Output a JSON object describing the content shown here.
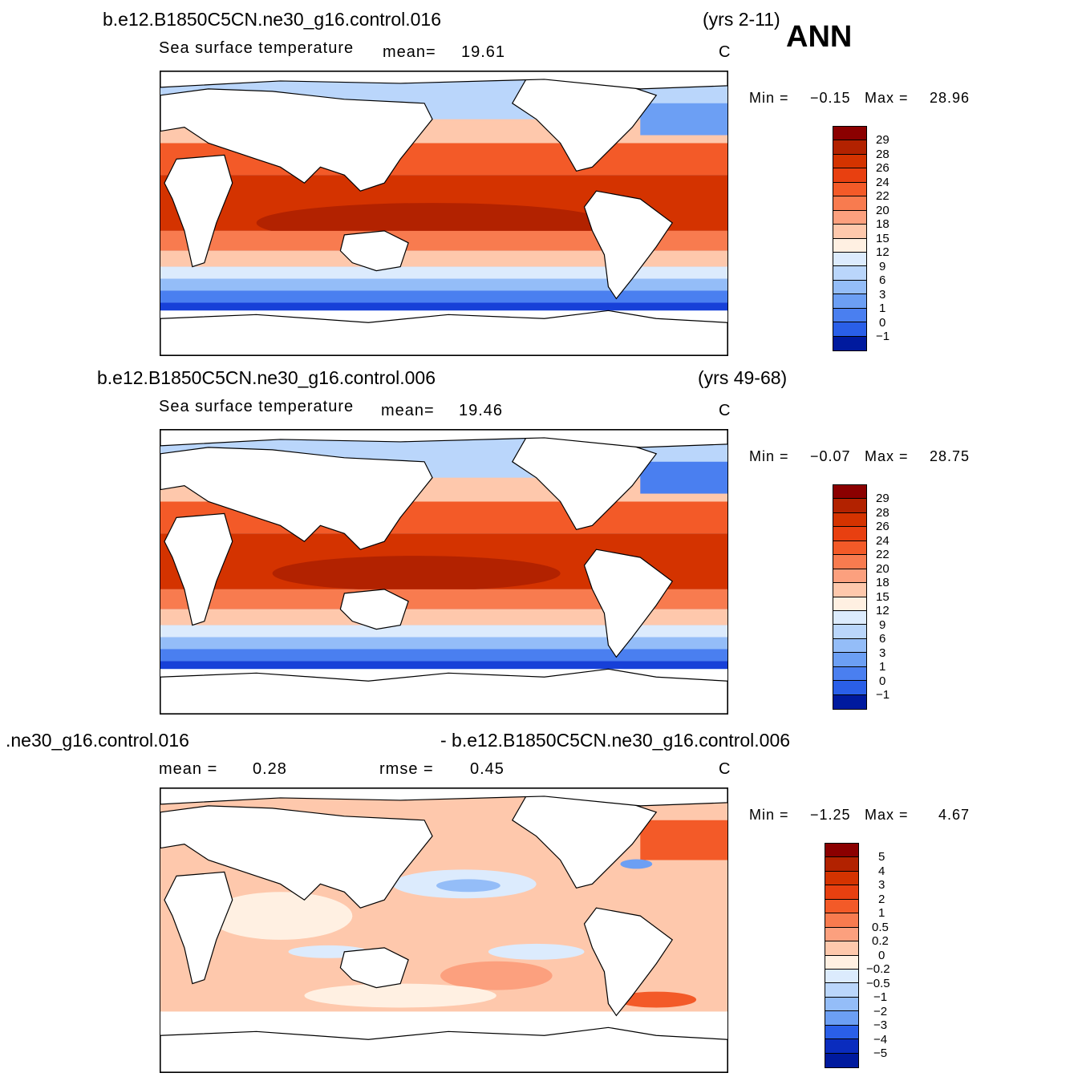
{
  "season": "ANN",
  "panels": [
    {
      "case_name": "b.e12.B1850C5CN.ne30_g16.control.016",
      "years": "(yrs 2-11)",
      "variable": "Sea surface temperature",
      "mean_label": "mean=",
      "mean_value": "19.61",
      "units": "C",
      "min_label": "Min =",
      "min_value": "−0.15",
      "max_label": "Max =",
      "max_value": "28.96",
      "colorbar": {
        "levels": [
          "29",
          "28",
          "26",
          "24",
          "22",
          "20",
          "18",
          "15",
          "12",
          "9",
          "6",
          "3",
          "1",
          "0",
          "−1"
        ],
        "colors": [
          "#8b0000",
          "#b22200",
          "#d43300",
          "#e84010",
          "#f35a28",
          "#f87b4f",
          "#fca07e",
          "#fec8ac",
          "#fff0e2",
          "#dcebfd",
          "#bad6fb",
          "#94bdf8",
          "#6c9ff4",
          "#4a7ff0",
          "#2a5fe8",
          "#1740d8",
          "#0a2cbe",
          "#001a9e"
        ]
      }
    },
    {
      "case_name": "b.e12.B1850C5CN.ne30_g16.control.006",
      "years": "(yrs 49-68)",
      "variable": "Sea surface temperature",
      "mean_label": "mean=",
      "mean_value": "19.46",
      "units": "C",
      "min_label": "Min =",
      "min_value": "−0.07",
      "max_label": "Max =",
      "max_value": "28.75",
      "colorbar": {
        "levels": [
          "29",
          "28",
          "26",
          "24",
          "22",
          "20",
          "18",
          "15",
          "12",
          "9",
          "6",
          "3",
          "1",
          "0",
          "−1"
        ],
        "colors": [
          "#8b0000",
          "#b22200",
          "#d43300",
          "#e84010",
          "#f35a28",
          "#f87b4f",
          "#fca07e",
          "#fec8ac",
          "#fff0e2",
          "#dcebfd",
          "#bad6fb",
          "#94bdf8",
          "#6c9ff4",
          "#4a7ff0",
          "#2a5fe8",
          "#1740d8",
          "#0a2cbe",
          "#001a9e"
        ]
      }
    },
    {
      "case_name_left": ".ne30_g16.control.016",
      "case_name_right": "- b.e12.B1850C5CN.ne30_g16.control.006",
      "mean_label": "mean =",
      "mean_value": "0.28",
      "rmse_label": "rmse =",
      "rmse_value": "0.45",
      "units": "C",
      "min_label": "Min =",
      "min_value": "−1.25",
      "max_label": "Max =",
      "max_value": "4.67",
      "colorbar": {
        "levels": [
          "5",
          "4",
          "3",
          "2",
          "1",
          "0.5",
          "0.2",
          "0",
          "−0.2",
          "−0.5",
          "−1",
          "−2",
          "−3",
          "−4",
          "−5"
        ],
        "colors": [
          "#8b0000",
          "#b22200",
          "#d43300",
          "#e84010",
          "#f35a28",
          "#f87b4f",
          "#fca07e",
          "#fec8ac",
          "#fff0e2",
          "#dcebfd",
          "#bad6fb",
          "#94bdf8",
          "#6c9ff4",
          "#4a7ff0",
          "#2a5fe8",
          "#1740d8",
          "#0a2cbe",
          "#001a9e"
        ]
      }
    }
  ]
}
